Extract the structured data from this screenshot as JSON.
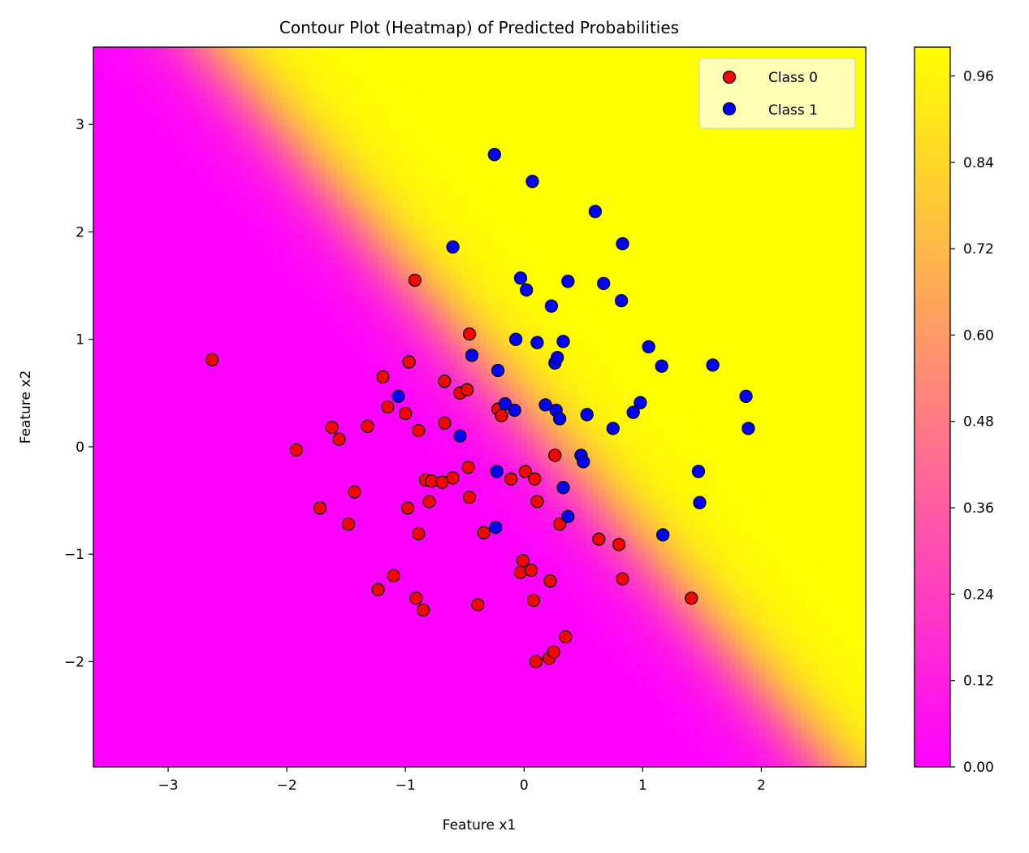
{
  "chart_data": {
    "type": "scatter",
    "title": "Contour Plot (Heatmap) of Predicted Probabilities",
    "xlabel": "Feature x1",
    "ylabel": "Feature x2",
    "xlim": [
      -3.63,
      2.88
    ],
    "ylim": [
      -2.98,
      3.72
    ],
    "xticks": [
      -3,
      -2,
      -1,
      0,
      1,
      2
    ],
    "yticks": [
      -2,
      -1,
      0,
      1,
      2,
      3
    ],
    "xtick_labels": [
      "−3",
      "−2",
      "−1",
      "0",
      "1",
      "2"
    ],
    "ytick_labels": [
      "−2",
      "−1",
      "0",
      "1",
      "2",
      "3"
    ],
    "grid": false,
    "legend_position": "top-right",
    "background": {
      "kind": "heatmap of predicted probability",
      "colormap": "spring",
      "decision_boundary": {
        "intercept": 0.3,
        "slope_x1": -1.28
      },
      "colorbar": {
        "range": [
          0.0,
          1.0
        ],
        "ticks": [
          "0.00",
          "0.12",
          "0.24",
          "0.36",
          "0.48",
          "0.60",
          "0.72",
          "0.84",
          "0.96"
        ],
        "tick_values": [
          0.0,
          0.12,
          0.24,
          0.36,
          0.48,
          0.6,
          0.72,
          0.84,
          0.96
        ]
      }
    },
    "series": [
      {
        "name": "Class 0",
        "color": "#ff0000",
        "points": [
          [
            -2.63,
            0.81
          ],
          [
            -1.92,
            -0.03
          ],
          [
            -1.72,
            -0.57
          ],
          [
            -1.62,
            0.18
          ],
          [
            -1.56,
            0.07
          ],
          [
            -1.48,
            -0.72
          ],
          [
            -1.43,
            -0.42
          ],
          [
            -1.32,
            0.19
          ],
          [
            -1.23,
            -1.33
          ],
          [
            -1.19,
            0.65
          ],
          [
            -1.15,
            0.37
          ],
          [
            -1.1,
            -1.2
          ],
          [
            -1.0,
            0.31
          ],
          [
            -0.98,
            -0.57
          ],
          [
            -0.97,
            0.79
          ],
          [
            -0.92,
            1.55
          ],
          [
            -0.91,
            -1.41
          ],
          [
            -0.89,
            0.15
          ],
          [
            -0.89,
            -0.81
          ],
          [
            -0.85,
            -1.52
          ],
          [
            -0.83,
            -0.31
          ],
          [
            -0.8,
            -0.51
          ],
          [
            -0.78,
            -0.32
          ],
          [
            -0.69,
            -0.33
          ],
          [
            -0.67,
            0.22
          ],
          [
            -0.67,
            0.61
          ],
          [
            -0.6,
            -0.29
          ],
          [
            -0.54,
            0.5
          ],
          [
            -0.48,
            0.53
          ],
          [
            -0.47,
            -0.19
          ],
          [
            -0.46,
            -0.47
          ],
          [
            -0.46,
            1.05
          ],
          [
            -0.39,
            -1.47
          ],
          [
            -0.34,
            -0.8
          ],
          [
            -0.22,
            0.35
          ],
          [
            -0.19,
            0.29
          ],
          [
            -0.11,
            -0.3
          ],
          [
            -0.03,
            -1.17
          ],
          [
            -0.01,
            -1.06
          ],
          [
            0.01,
            -0.23
          ],
          [
            0.06,
            -1.15
          ],
          [
            0.08,
            -1.43
          ],
          [
            0.09,
            -0.3
          ],
          [
            0.1,
            -2.0
          ],
          [
            0.11,
            -0.51
          ],
          [
            0.21,
            -1.97
          ],
          [
            0.22,
            -1.25
          ],
          [
            0.25,
            -1.91
          ],
          [
            0.26,
            -0.08
          ],
          [
            0.3,
            -0.72
          ],
          [
            0.35,
            -1.77
          ],
          [
            0.63,
            -0.86
          ],
          [
            0.8,
            -0.91
          ],
          [
            0.83,
            -1.23
          ],
          [
            1.41,
            -1.41
          ]
        ]
      },
      {
        "name": "Class 1",
        "color": "#0000ff",
        "points": [
          [
            -1.06,
            0.47
          ],
          [
            -0.6,
            1.86
          ],
          [
            -0.54,
            0.1
          ],
          [
            -0.44,
            0.85
          ],
          [
            -0.25,
            2.72
          ],
          [
            -0.24,
            -0.75
          ],
          [
            -0.23,
            -0.23
          ],
          [
            -0.22,
            0.71
          ],
          [
            -0.16,
            0.4
          ],
          [
            -0.07,
            1.0
          ],
          [
            -0.08,
            0.34
          ],
          [
            -0.03,
            1.57
          ],
          [
            0.02,
            1.46
          ],
          [
            0.07,
            2.47
          ],
          [
            0.11,
            0.97
          ],
          [
            0.18,
            0.39
          ],
          [
            0.23,
            1.31
          ],
          [
            0.26,
            0.78
          ],
          [
            0.27,
            0.34
          ],
          [
            0.28,
            0.83
          ],
          [
            0.3,
            0.26
          ],
          [
            0.33,
            0.98
          ],
          [
            0.33,
            -0.38
          ],
          [
            0.37,
            1.54
          ],
          [
            0.37,
            -0.65
          ],
          [
            0.48,
            -0.08
          ],
          [
            0.5,
            -0.14
          ],
          [
            0.53,
            0.3
          ],
          [
            0.6,
            2.19
          ],
          [
            0.67,
            1.52
          ],
          [
            0.75,
            0.17
          ],
          [
            0.82,
            1.36
          ],
          [
            0.83,
            1.89
          ],
          [
            0.92,
            0.32
          ],
          [
            0.98,
            0.41
          ],
          [
            1.05,
            0.93
          ],
          [
            1.16,
            0.75
          ],
          [
            1.17,
            -0.82
          ],
          [
            1.47,
            -0.23
          ],
          [
            1.48,
            -0.52
          ],
          [
            1.59,
            0.76
          ],
          [
            1.87,
            0.47
          ],
          [
            1.89,
            0.17
          ]
        ]
      }
    ]
  }
}
